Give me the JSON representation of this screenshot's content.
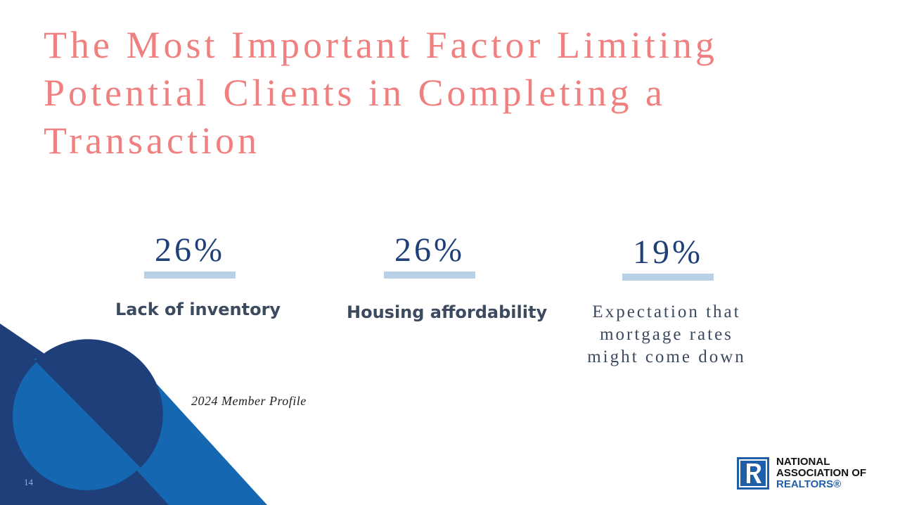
{
  "slide": {
    "title_lines": [
      "The Most Important Factor Limiting",
      "Potential Clients in Completing a",
      "Transaction"
    ],
    "stats": [
      {
        "value": "26%",
        "label": "Lack of inventory"
      },
      {
        "value": "26%",
        "label": "Housing affordability"
      },
      {
        "value": "19%",
        "label": "Expectation that mortgage rates might come down"
      }
    ],
    "source": "2024 Member Profile",
    "page_number": "14"
  },
  "logo": {
    "icon": "realtor-r-logo-icon",
    "line1": "NATIONAL",
    "line2": "ASSOCIATION OF",
    "line3": "REALTORS®"
  },
  "colors": {
    "title": "#f08080",
    "stat_value": "#1f3f78",
    "stat_bar": "#b9d1e7",
    "label": "#3b4a5e",
    "deco_dark": "#1e3f7a",
    "deco_mid": "#1467b0",
    "logo_blue": "#1f5fa8"
  }
}
